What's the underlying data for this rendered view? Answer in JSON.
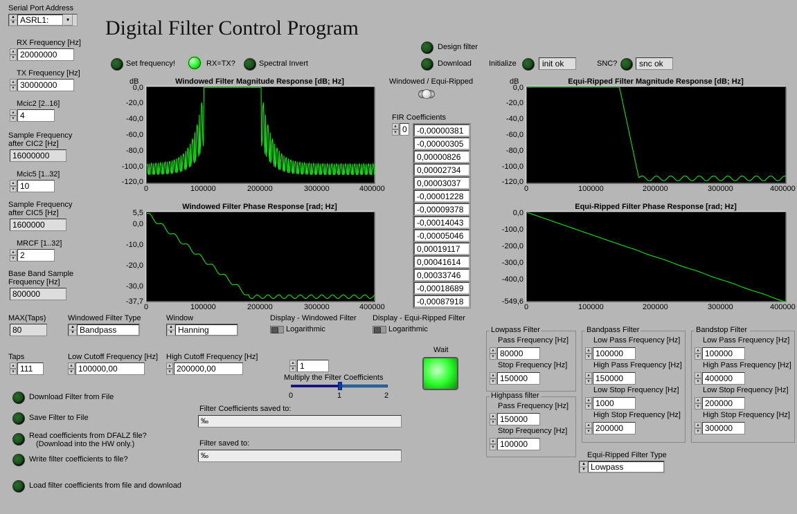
{
  "title": "Digital Filter Control Program",
  "left_panel": {
    "serial_port_label": "Serial Port Address",
    "serial_port_value": "ASRL1:",
    "rx_freq_label": "RX Frequency [Hz]",
    "rx_freq_value": "20000000",
    "tx_freq_label": "TX Frequency [Hz]",
    "tx_freq_value": "30000000",
    "mcic2_label": "Mcic2 [2..16]",
    "mcic2_value": "4",
    "sf_cic2_label_l1": "Sample Frequency",
    "sf_cic2_label_l2": "after CIC2 [Hz]",
    "sf_cic2_value": "16000000",
    "mcic5_label": "Mcic5 [1..32]",
    "mcic5_value": "10",
    "sf_cic5_label_l1": "Sample Frequency",
    "sf_cic5_label_l2": "after CIC5 [Hz]",
    "sf_cic5_value": "1600000",
    "mrcf_label": "MRCF [1..32]",
    "mrcf_value": "2",
    "bbsf_label_l1": "Base Band Sample",
    "bbsf_label_l2": "Frequency [Hz]",
    "bbsf_value": "800000",
    "max_taps_label": "MAX(Taps)",
    "max_taps_value": "80",
    "taps_label": "Taps",
    "taps_value": "111"
  },
  "top_controls": {
    "set_freq": "Set frequency!",
    "rx_tx": "RX=TX?",
    "spectral_invert": "Spectral Invert",
    "design_filter": "Design filter",
    "download": "Download",
    "initialize": "Initialize",
    "init_ok": "init ok",
    "snc_q": "SNC?",
    "snc_ok": "snc ok"
  },
  "charts": {
    "win_mag": {
      "title": "Windowed Filter Magnitude Response [dB; Hz]",
      "y_unit": "dB",
      "x_ticks": [
        "0",
        "100000",
        "200000",
        "300000",
        "400000"
      ],
      "y_ticks": [
        "0,0",
        "-20,0",
        "-40,0",
        "-60,0",
        "-80,0",
        "-100,0",
        "-120,0"
      ],
      "ylim": [
        -120,
        0
      ],
      "xlim": [
        0,
        400000
      ],
      "line_color": "#00ff00",
      "passband": [
        100000,
        200000
      ],
      "passband_level": 0,
      "stop_attenuation": -95,
      "ripple_depth": -118
    },
    "win_phase": {
      "title": "Windowed Filter Phase Response [rad; Hz]",
      "x_ticks": [
        "0",
        "100000",
        "200000",
        "300000",
        "400000"
      ],
      "y_ticks": [
        "5,5",
        "0,0",
        "-10,0",
        "-20,0",
        "-30,0",
        "-37,7"
      ],
      "ylim": [
        -37.7,
        5.5
      ],
      "xlim": [
        0,
        400000
      ],
      "line_color": "#00ff00"
    },
    "equi_mag": {
      "title": "Equi-Ripped Filter Magnitude Response [dB; Hz]",
      "y_unit": "dB",
      "x_ticks": [
        "0",
        "100000",
        "200000",
        "300000",
        "400000"
      ],
      "y_ticks": [
        "0,0",
        "-20,0",
        "-40,0",
        "-60,0",
        "-80,0",
        "-100,0",
        "-120,0"
      ],
      "ylim": [
        -120,
        0
      ],
      "xlim": [
        0,
        400000
      ],
      "line_color": "#00ff00",
      "cutoff": 150000,
      "stop_level": -113,
      "ripple_amp": 3
    },
    "equi_phase": {
      "title": "Equi-Ripped Filter Phase Response [rad; Hz]",
      "x_ticks": [
        "0",
        "100000",
        "200000",
        "300000",
        "400000"
      ],
      "y_ticks": [
        "0,0",
        "-100,0",
        "-200,0",
        "-300,0",
        "-400,0",
        "-549,6"
      ],
      "ylim": [
        -549.6,
        0
      ],
      "xlim": [
        0,
        400000
      ],
      "line_color": "#00ff00"
    }
  },
  "mid": {
    "win_equi_label": "Windowed / Equi-Ripped",
    "fir_label": "FIR Coefficients",
    "fir_index": "0",
    "fir_values": [
      "-0,00000381",
      "-0,00000305",
      "0,00000826",
      "0,00002734",
      "0,00003037",
      "-0,00001228",
      "-0,00009378",
      "-0,00014043",
      "-0,00005046",
      "0,00019117",
      "0,00041614",
      "0,00033746",
      "-0,00018689",
      "-0,00087918"
    ]
  },
  "bottom_left": {
    "dl_from_file": "Download Filter from File",
    "save_to_file": "Save Filter to File",
    "read_dfalz_l1": "Read coefficients from DFALZ file?",
    "read_dfalz_l2": "(Download into the HW only.)",
    "write_coef": "Write filter coefficients to file?",
    "load_and_dl": "Load filter coefficients from file and download"
  },
  "bottom_mid": {
    "win_type_label": "Windowed Filter Type",
    "win_type_value": "Bandpass",
    "window_label": "Window",
    "window_value": "Hanning",
    "low_cut_label": "Low Cutoff Frequency [Hz]",
    "low_cut_value": "100000,00",
    "high_cut_label": "High Cutoff Frequency [Hz]",
    "high_cut_value": "200000,00",
    "disp_win_label": "Display - Windowed Filter",
    "disp_equi_label": "Display - Equi-Ripped Filter",
    "logarithmic": "Logarithmic",
    "multiply_label": "Multiply the Filter Coefficients",
    "multiply_value": "1",
    "slider_ticks": [
      "0",
      "1",
      "2"
    ],
    "wait_label": "Wait",
    "coef_saved_label": "Filter Coefficients saved to:",
    "filter_saved_label": "Filter saved to:",
    "path_prefix": "‰"
  },
  "right": {
    "lowpass": {
      "label": "Lowpass Filter",
      "pass_label": "Pass Frequency [Hz]",
      "pass_value": "80000",
      "stop_label": "Stop Frequency [Hz]",
      "stop_value": "150000"
    },
    "highpass": {
      "label": "Highpass filter",
      "pass_label": "Pass Frequency [Hz]",
      "pass_value": "150000",
      "stop_label": "Stop Frequency [Hz]",
      "stop_value": "100000"
    },
    "bandpass": {
      "label": "Bandpass Filter",
      "lowpass_label": "Low Pass Frequency [Hz]",
      "lowpass_value": "100000",
      "highpass_label": "High Pass Frequency [Hz]",
      "highpass_value": "150000",
      "lowstop_label": "Low Stop Frequency [Hz]",
      "lowstop_value": "1000",
      "highstop_label": "High Stop Frequency [Hz]",
      "highstop_value": "200000"
    },
    "bandstop": {
      "label": "Bandstop Filter",
      "lowpass_label": "Low Pass Frequency [Hz]",
      "lowpass_value": "100000",
      "highpass_label": "High Pass Frequency [Hz]",
      "highpass_value": "400000",
      "lowstop_label": "Low Stop Frequency [Hz]",
      "lowstop_value": "200000",
      "highstop_label": "High Stop Frequency [Hz]",
      "highstop_value": "300000"
    },
    "equi_type_label": "Equi-Ripped Filter Type",
    "equi_type_value": "Lowpass"
  }
}
